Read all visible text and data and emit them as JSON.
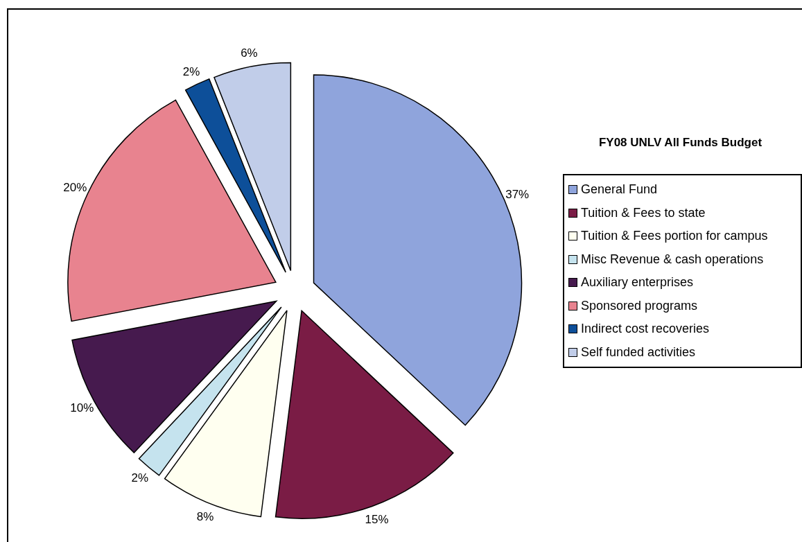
{
  "chart_data": {
    "type": "pie",
    "title": "FY08 UNLV All Funds Budget",
    "categories": [
      "General Fund",
      "Tuition & Fees to state",
      "Tuition & Fees portion for campus",
      "Misc Revenue & cash operations",
      "Auxiliary enterprises",
      "Sponsored programs",
      "Indirect cost recoveries",
      "Self funded activities"
    ],
    "values": [
      37,
      15,
      8,
      2,
      10,
      20,
      2,
      6
    ],
    "value_labels": [
      "37%",
      "15%",
      "8%",
      "2%",
      "10%",
      "20%",
      "2%",
      "6%"
    ],
    "colors": [
      "#8fa4dc",
      "#7a1c45",
      "#fffff0",
      "#c5e3ee",
      "#461a4e",
      "#e8838f",
      "#0d4f99",
      "#c1cde9"
    ],
    "legend": "right"
  }
}
